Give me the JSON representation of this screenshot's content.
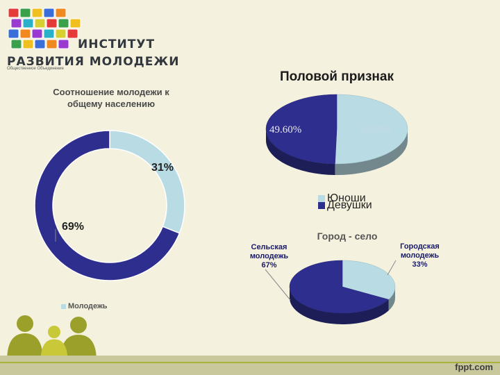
{
  "logo": {
    "line1": "ИНСТИТУТ",
    "line2": "РАЗВИТИЯ МОЛОДЕЖИ",
    "subtitle": "Общественное Объединение"
  },
  "footer": {
    "brand": "fppt.com"
  },
  "colors": {
    "dark_blue": "#2e2e8e",
    "light_blue": "#b9dbe4",
    "background": "#f4f2de",
    "accent_green": "#a9b23a"
  },
  "chart_data": [
    {
      "type": "pie",
      "variant": "donut",
      "title": "Соотношение молодежи к общему населению",
      "title_lines": [
        "Соотношение молодежи к",
        "общему населению"
      ],
      "values": [
        31,
        69
      ],
      "value_labels": [
        "31%",
        "69%"
      ],
      "colors": [
        "#b9dbe4",
        "#2e2e8e"
      ],
      "legend": [
        "Молодежь"
      ],
      "legend_placement": "bottom-left"
    },
    {
      "type": "pie",
      "variant": "3d",
      "title": "Половой признак",
      "values": [
        50.4,
        49.6
      ],
      "value_labels": [
        "50.40%",
        "49.60%"
      ],
      "series_names": [
        "Юноши",
        "Девушки"
      ],
      "colors": [
        "#b9dbe4",
        "#2e2e8e"
      ],
      "legend": [
        "Юноши",
        "Девушки"
      ],
      "legend_placement": "bottom"
    },
    {
      "type": "pie",
      "variant": "3d",
      "title": "Город - село",
      "values": [
        33,
        67
      ],
      "categories": [
        "Городская молодежь",
        "Сельская молодежь"
      ],
      "label_lines": [
        [
          "Городская",
          "молодежь",
          "33%"
        ],
        [
          "Сельская",
          "молодежь",
          "67%"
        ]
      ],
      "colors": [
        "#b9dbe4",
        "#2e2e8e"
      ]
    }
  ]
}
